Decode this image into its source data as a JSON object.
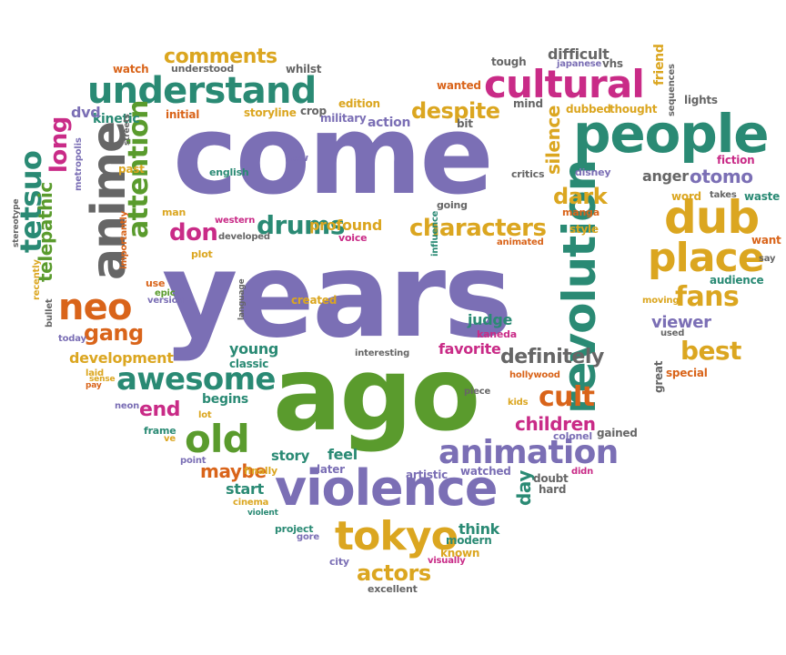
{
  "palette": {
    "purple": "#7b6fb5",
    "green": "#5a9b2d",
    "teal": "#2a8a74",
    "gold": "#dba620",
    "orange": "#d9641a",
    "magenta": "#c92b87",
    "gray": "#666666"
  },
  "words": [
    {
      "text": "come",
      "color": "purple"
    },
    {
      "text": "years",
      "color": "purple"
    },
    {
      "text": "ago",
      "color": "green"
    },
    {
      "text": "violence",
      "color": "purple"
    },
    {
      "text": "people",
      "color": "teal"
    },
    {
      "text": "revolution",
      "color": "teal"
    },
    {
      "text": "cultural",
      "color": "magenta"
    },
    {
      "text": "understand",
      "color": "teal"
    },
    {
      "text": "anime",
      "color": "gray"
    },
    {
      "text": "dub",
      "color": "gold"
    },
    {
      "text": "place",
      "color": "gold"
    },
    {
      "text": "tokyo",
      "color": "gold"
    },
    {
      "text": "animation",
      "color": "purple"
    },
    {
      "text": "old",
      "color": "green"
    },
    {
      "text": "neo",
      "color": "orange"
    },
    {
      "text": "awesome",
      "color": "teal"
    },
    {
      "text": "characters",
      "color": "gold"
    },
    {
      "text": "attention",
      "color": "green"
    },
    {
      "text": "fans",
      "color": "gold"
    },
    {
      "text": "drums",
      "color": "teal"
    },
    {
      "text": "despite",
      "color": "gold"
    },
    {
      "text": "comments",
      "color": "gold"
    },
    {
      "text": "actors",
      "color": "gold"
    },
    {
      "text": "tetsuo",
      "color": "teal"
    },
    {
      "text": "telepathic",
      "color": "green"
    },
    {
      "text": "long",
      "color": "magenta"
    },
    {
      "text": "best",
      "color": "gold"
    },
    {
      "text": "cult",
      "color": "orange"
    },
    {
      "text": "children",
      "color": "magenta"
    },
    {
      "text": "definitely",
      "color": "gray"
    },
    {
      "text": "otomo",
      "color": "purple"
    },
    {
      "text": "don",
      "color": "magenta"
    },
    {
      "text": "dark",
      "color": "gold"
    },
    {
      "text": "silence",
      "color": "gold"
    },
    {
      "text": "gang",
      "color": "orange"
    },
    {
      "text": "viewer",
      "color": "purple"
    },
    {
      "text": "maybe",
      "color": "orange"
    },
    {
      "text": "profound",
      "color": "gold"
    },
    {
      "text": "end",
      "color": "magenta"
    },
    {
      "text": "development",
      "color": "gold"
    },
    {
      "text": "favorite",
      "color": "magenta"
    },
    {
      "text": "day",
      "color": "teal"
    },
    {
      "text": "judge",
      "color": "teal"
    },
    {
      "text": "story",
      "color": "teal"
    },
    {
      "text": "feel",
      "color": "teal"
    },
    {
      "text": "young",
      "color": "teal"
    },
    {
      "text": "begins",
      "color": "teal"
    },
    {
      "text": "start",
      "color": "teal"
    },
    {
      "text": "think",
      "color": "teal"
    },
    {
      "text": "difficult",
      "color": "gray"
    },
    {
      "text": "watched",
      "color": "purple"
    },
    {
      "text": "anger",
      "color": "gray"
    },
    {
      "text": "tough",
      "color": "gray"
    },
    {
      "text": "friend",
      "color": "gold"
    },
    {
      "text": "kinetic",
      "color": "teal"
    },
    {
      "text": "whilst",
      "color": "gray"
    },
    {
      "text": "understood",
      "color": "gray"
    },
    {
      "text": "watch",
      "color": "orange"
    },
    {
      "text": "dvd",
      "color": "purple"
    },
    {
      "text": "edition",
      "color": "gold"
    },
    {
      "text": "storyline",
      "color": "gold"
    },
    {
      "text": "crop",
      "color": "gray"
    },
    {
      "text": "military",
      "color": "purple"
    },
    {
      "text": "action",
      "color": "purple"
    },
    {
      "text": "wanted",
      "color": "orange"
    },
    {
      "text": "bit",
      "color": "gray"
    },
    {
      "text": "mind",
      "color": "gray"
    },
    {
      "text": "japanese",
      "color": "purple"
    },
    {
      "text": "vhs",
      "color": "gray"
    },
    {
      "text": "dubbed",
      "color": "gold"
    },
    {
      "text": "thought",
      "color": "gold"
    },
    {
      "text": "lights",
      "color": "gray"
    },
    {
      "text": "sequences",
      "color": "gray"
    },
    {
      "text": "fiction",
      "color": "magenta"
    },
    {
      "text": "word",
      "color": "gold"
    },
    {
      "text": "takes",
      "color": "gray"
    },
    {
      "text": "waste",
      "color": "teal"
    },
    {
      "text": "want",
      "color": "orange"
    },
    {
      "text": "say",
      "color": "gray"
    },
    {
      "text": "audience",
      "color": "teal"
    },
    {
      "text": "moving",
      "color": "gold"
    },
    {
      "text": "used",
      "color": "gray"
    },
    {
      "text": "special",
      "color": "orange"
    },
    {
      "text": "great",
      "color": "gray"
    },
    {
      "text": "gained",
      "color": "gray"
    },
    {
      "text": "colonel",
      "color": "purple"
    },
    {
      "text": "doubt",
      "color": "gray"
    },
    {
      "text": "didn",
      "color": "magenta"
    },
    {
      "text": "hard",
      "color": "gray"
    },
    {
      "text": "artistic",
      "color": "purple"
    },
    {
      "text": "kids",
      "color": "gold"
    },
    {
      "text": "piece",
      "color": "gray"
    },
    {
      "text": "hollywood",
      "color": "orange"
    },
    {
      "text": "interesting",
      "color": "gray"
    },
    {
      "text": "kaneda",
      "color": "magenta"
    },
    {
      "text": "created",
      "color": "gold"
    },
    {
      "text": "voice",
      "color": "magenta"
    },
    {
      "text": "influence",
      "color": "teal"
    },
    {
      "text": "animated",
      "color": "orange"
    },
    {
      "text": "going",
      "color": "gray"
    },
    {
      "text": "critics",
      "color": "gray"
    },
    {
      "text": "disney",
      "color": "purple"
    },
    {
      "text": "manga",
      "color": "orange"
    },
    {
      "text": "style",
      "color": "gold"
    },
    {
      "text": "new",
      "color": "purple"
    },
    {
      "text": "english",
      "color": "teal"
    },
    {
      "text": "past",
      "color": "gold"
    },
    {
      "text": "streets",
      "color": "gray"
    },
    {
      "text": "metropolis",
      "color": "purple"
    },
    {
      "text": "initial",
      "color": "orange"
    },
    {
      "text": "man",
      "color": "gold"
    },
    {
      "text": "western",
      "color": "magenta"
    },
    {
      "text": "developed",
      "color": "gray"
    },
    {
      "text": "plot",
      "color": "gold"
    },
    {
      "text": "importantly",
      "color": "orange"
    },
    {
      "text": "use",
      "color": "orange"
    },
    {
      "text": "epic",
      "color": "green"
    },
    {
      "text": "version",
      "color": "purple"
    },
    {
      "text": "language",
      "color": "gray"
    },
    {
      "text": "recently",
      "color": "gold"
    },
    {
      "text": "bullet",
      "color": "gray"
    },
    {
      "text": "today",
      "color": "purple"
    },
    {
      "text": "stereotype",
      "color": "gray"
    },
    {
      "text": "laid",
      "color": "gold"
    },
    {
      "text": "pay",
      "color": "orange"
    },
    {
      "text": "sense",
      "color": "gold"
    },
    {
      "text": "neon",
      "color": "purple"
    },
    {
      "text": "frame",
      "color": "teal"
    },
    {
      "text": "ve",
      "color": "gold"
    },
    {
      "text": "lot",
      "color": "gold"
    },
    {
      "text": "classic",
      "color": "teal"
    },
    {
      "text": "point",
      "color": "purple"
    },
    {
      "text": "finally",
      "color": "gold"
    },
    {
      "text": "later",
      "color": "purple"
    },
    {
      "text": "cinema",
      "color": "gold"
    },
    {
      "text": "violent",
      "color": "teal"
    },
    {
      "text": "project",
      "color": "teal"
    },
    {
      "text": "gore",
      "color": "purple"
    },
    {
      "text": "modern",
      "color": "teal"
    },
    {
      "text": "known",
      "color": "gold"
    },
    {
      "text": "city",
      "color": "purple"
    },
    {
      "text": "visually",
      "color": "magenta"
    },
    {
      "text": "excellent",
      "color": "gray"
    }
  ]
}
